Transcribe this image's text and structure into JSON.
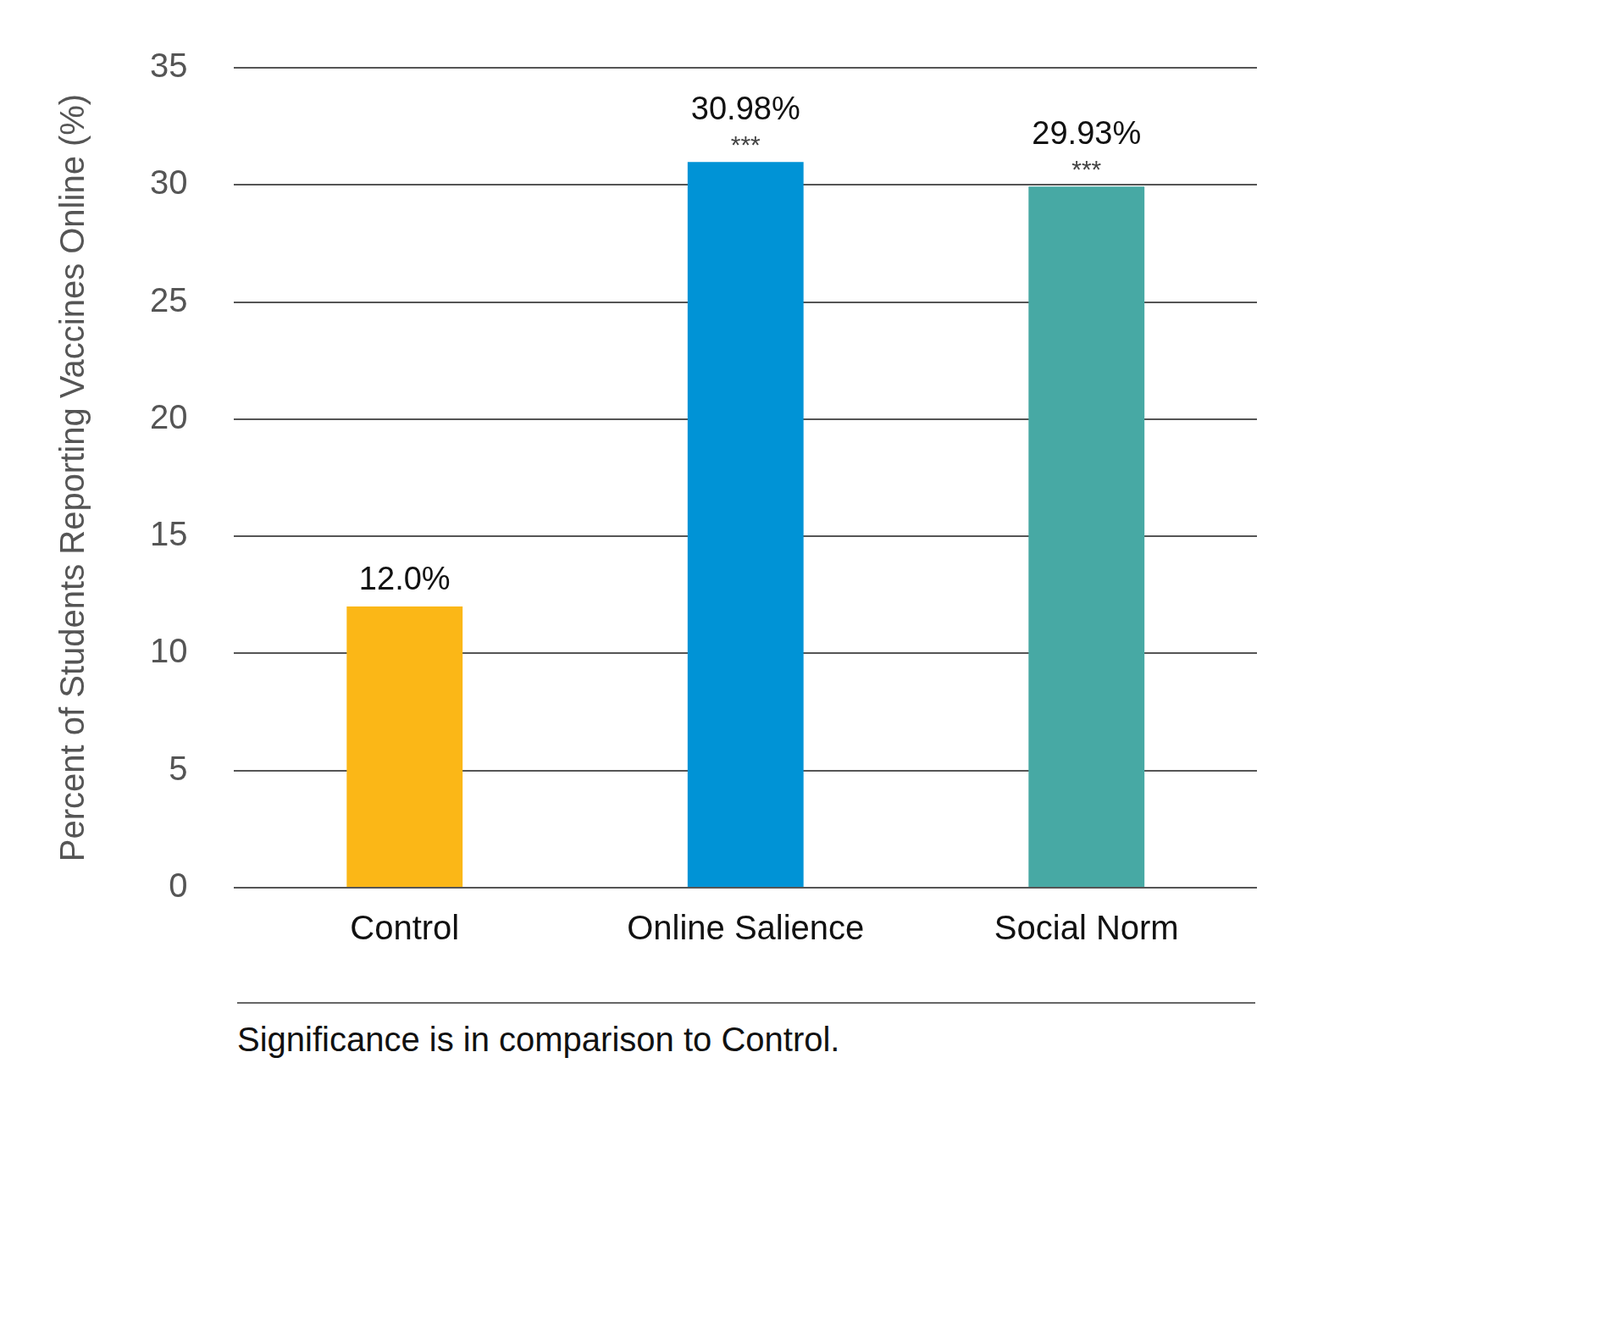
{
  "chart_data": {
    "type": "bar",
    "y_label": "Percent of Students Reporting Vaccines Online (%)",
    "categories": [
      "Control",
      "Online Salience",
      "Social Norm"
    ],
    "values": [
      12.0,
      30.98,
      29.93
    ],
    "value_labels": [
      "12.0%",
      "30.98%",
      "29.93%"
    ],
    "data_labels": true,
    "colors": [
      "#fbb717",
      "#0093d6",
      "#47a9a4"
    ],
    "annotations": [
      {
        "category": "Online Salience",
        "text": "***"
      },
      {
        "category": "Social Norm",
        "text": "***"
      }
    ],
    "note": "Significance is in comparison to Control.",
    "ylim": [
      0,
      35
    ],
    "yticks": [
      0,
      5,
      10,
      15,
      20,
      25,
      30,
      35
    ],
    "grid": true
  }
}
